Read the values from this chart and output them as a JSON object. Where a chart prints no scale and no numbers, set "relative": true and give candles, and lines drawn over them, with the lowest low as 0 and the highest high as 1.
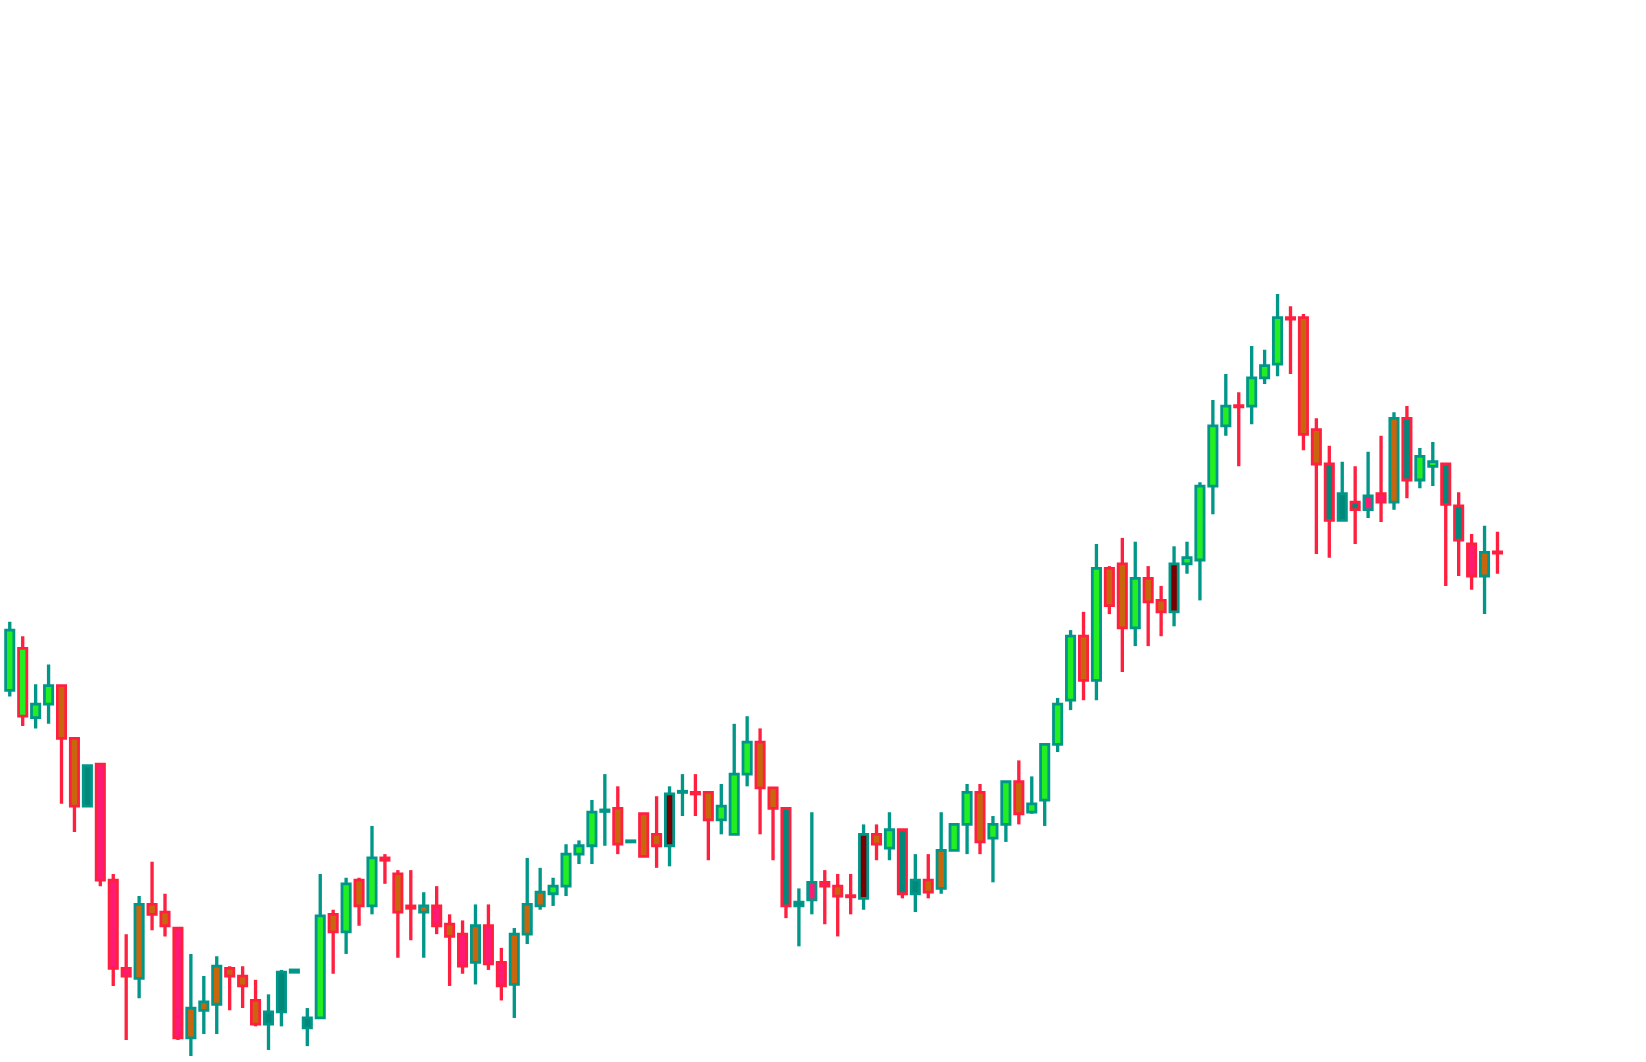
{
  "chart_data": {
    "type": "candlestick",
    "relative": true,
    "categories": [
      null,
      null,
      null,
      null,
      null,
      null,
      null,
      null,
      null,
      null,
      null,
      null,
      null,
      null,
      null,
      null,
      null,
      null,
      null,
      null,
      null,
      null,
      null,
      null,
      null,
      null,
      null,
      null,
      null,
      null,
      null,
      null,
      null,
      null,
      null,
      null,
      null,
      null,
      null,
      null,
      null,
      null,
      null,
      null,
      null,
      null,
      null,
      null,
      null,
      null,
      null,
      null,
      null,
      null,
      null,
      null,
      null,
      null,
      null,
      null,
      null,
      null,
      null,
      null,
      null,
      null,
      null,
      null,
      null,
      null,
      null,
      null,
      null,
      null,
      null,
      null,
      null,
      null,
      null,
      null,
      null,
      null,
      null,
      null,
      null,
      null,
      null,
      null,
      null,
      null,
      null,
      null,
      null,
      null,
      null,
      null,
      null,
      null,
      null,
      null,
      null,
      null,
      null,
      null,
      null,
      null,
      null,
      null,
      null,
      null,
      null,
      null,
      null,
      null,
      null,
      null
    ],
    "tick_labels": false,
    "ohlc": [
      [
        0.48,
        0.57,
        0.472,
        0.559
      ],
      [
        0.535,
        0.551,
        0.433,
        0.446
      ],
      [
        0.444,
        0.488,
        0.43,
        0.462
      ],
      [
        0.462,
        0.514,
        0.436,
        0.486
      ],
      [
        0.486,
        0.486,
        0.331,
        0.417
      ],
      [
        0.417,
        0.417,
        0.294,
        0.328
      ],
      [
        0.328,
        0.381,
        0.328,
        0.381
      ],
      [
        0.383,
        0.383,
        0.223,
        0.231
      ],
      [
        0.231,
        0.239,
        0.092,
        0.115
      ],
      [
        0.115,
        0.16,
        0.021,
        0.105
      ],
      [
        0.102,
        0.21,
        0.076,
        0.199
      ],
      [
        0.199,
        0.255,
        0.165,
        0.186
      ],
      [
        0.189,
        0.213,
        0.157,
        0.171
      ],
      [
        0.168,
        0.168,
        0.021,
        0.024
      ],
      [
        0.024,
        0.134,
        0.0,
        0.063
      ],
      [
        0.06,
        0.105,
        0.029,
        0.071
      ],
      [
        0.068,
        0.131,
        0.029,
        0.118
      ],
      [
        0.115,
        0.118,
        0.06,
        0.105
      ],
      [
        0.105,
        0.118,
        0.063,
        0.092
      ],
      [
        0.073,
        0.1,
        0.039,
        0.042
      ],
      [
        0.042,
        0.081,
        0.008,
        0.058
      ],
      [
        0.058,
        0.113,
        0.039,
        0.11
      ],
      [
        0.11,
        0.113,
        0.11,
        0.113
      ],
      [
        0.037,
        0.063,
        0.013,
        0.05
      ],
      [
        0.05,
        0.239,
        0.05,
        0.184
      ],
      [
        0.186,
        0.192,
        0.108,
        0.163
      ],
      [
        0.163,
        0.234,
        0.134,
        0.226
      ],
      [
        0.231,
        0.234,
        0.171,
        0.197
      ],
      [
        0.197,
        0.302,
        0.186,
        0.26
      ],
      [
        0.26,
        0.265,
        0.226,
        0.257
      ],
      [
        0.239,
        0.244,
        0.129,
        0.189
      ],
      [
        0.197,
        0.244,
        0.152,
        0.194
      ],
      [
        0.189,
        0.215,
        0.129,
        0.197
      ],
      [
        0.197,
        0.223,
        0.16,
        0.171
      ],
      [
        0.173,
        0.186,
        0.092,
        0.157
      ],
      [
        0.16,
        0.178,
        0.108,
        0.118
      ],
      [
        0.123,
        0.199,
        0.094,
        0.171
      ],
      [
        0.171,
        0.199,
        0.113,
        0.121
      ],
      [
        0.123,
        0.142,
        0.073,
        0.092
      ],
      [
        0.094,
        0.168,
        0.05,
        0.16
      ],
      [
        0.16,
        0.26,
        0.147,
        0.199
      ],
      [
        0.197,
        0.247,
        0.192,
        0.215
      ],
      [
        0.213,
        0.234,
        0.197,
        0.223
      ],
      [
        0.223,
        0.278,
        0.21,
        0.265
      ],
      [
        0.265,
        0.283,
        0.252,
        0.276
      ],
      [
        0.276,
        0.336,
        0.252,
        0.32
      ],
      [
        0.321,
        0.37,
        0.276,
        0.323
      ],
      [
        0.325,
        0.354,
        0.265,
        0.278
      ],
      [
        0.281,
        0.281,
        0.281,
        0.281
      ],
      [
        0.318,
        0.318,
        0.262,
        0.262
      ],
      [
        0.291,
        0.341,
        0.247,
        0.276
      ],
      [
        0.276,
        0.354,
        0.249,
        0.344
      ],
      [
        0.346,
        0.37,
        0.315,
        0.346
      ],
      [
        0.346,
        0.37,
        0.315,
        0.344
      ],
      [
        0.346,
        0.346,
        0.257,
        0.31
      ],
      [
        0.31,
        0.357,
        0.291,
        0.328
      ],
      [
        0.291,
        0.436,
        0.291,
        0.37
      ],
      [
        0.37,
        0.446,
        0.354,
        0.412
      ],
      [
        0.412,
        0.43,
        0.291,
        0.352
      ],
      [
        0.352,
        0.352,
        0.257,
        0.325
      ],
      [
        0.325,
        0.325,
        0.181,
        0.197
      ],
      [
        0.197,
        0.22,
        0.144,
        0.202
      ],
      [
        0.205,
        0.32,
        0.186,
        0.228
      ],
      [
        0.228,
        0.244,
        0.173,
        0.223
      ],
      [
        0.223,
        0.239,
        0.157,
        0.21
      ],
      [
        0.21,
        0.239,
        0.186,
        0.209
      ],
      [
        0.207,
        0.304,
        0.192,
        0.291
      ],
      [
        0.291,
        0.304,
        0.257,
        0.278
      ],
      [
        0.273,
        0.32,
        0.257,
        0.297
      ],
      [
        0.297,
        0.297,
        0.207,
        0.213
      ],
      [
        0.213,
        0.265,
        0.189,
        0.231
      ],
      [
        0.231,
        0.265,
        0.207,
        0.215
      ],
      [
        0.22,
        0.32,
        0.213,
        0.27
      ],
      [
        0.27,
        0.304,
        0.27,
        0.304
      ],
      [
        0.304,
        0.357,
        0.265,
        0.346
      ],
      [
        0.346,
        0.357,
        0.265,
        0.281
      ],
      [
        0.286,
        0.315,
        0.228,
        0.304
      ],
      [
        0.304,
        0.36,
        0.281,
        0.36
      ],
      [
        0.36,
        0.388,
        0.304,
        0.318
      ],
      [
        0.32,
        0.367,
        0.318,
        0.331
      ],
      [
        0.336,
        0.409,
        0.302,
        0.409
      ],
      [
        0.409,
        0.47,
        0.399,
        0.462
      ],
      [
        0.467,
        0.559,
        0.454,
        0.551
      ],
      [
        0.551,
        0.583,
        0.467,
        0.493
      ],
      [
        0.493,
        0.672,
        0.467,
        0.64
      ],
      [
        0.64,
        0.643,
        0.58,
        0.591
      ],
      [
        0.646,
        0.68,
        0.504,
        0.562
      ],
      [
        0.562,
        0.675,
        0.538,
        0.627
      ],
      [
        0.627,
        0.643,
        0.538,
        0.596
      ],
      [
        0.598,
        0.617,
        0.551,
        0.583
      ],
      [
        0.583,
        0.669,
        0.564,
        0.646
      ],
      [
        0.646,
        0.675,
        0.633,
        0.654
      ],
      [
        0.651,
        0.753,
        0.598,
        0.748
      ],
      [
        0.748,
        0.861,
        0.711,
        0.827
      ],
      [
        0.827,
        0.895,
        0.814,
        0.853
      ],
      [
        0.853,
        0.871,
        0.774,
        0.852
      ],
      [
        0.853,
        0.932,
        0.829,
        0.89
      ],
      [
        0.89,
        0.927,
        0.882,
        0.906
      ],
      [
        0.908,
        1.0,
        0.892,
        0.969
      ],
      [
        0.969,
        0.984,
        0.895,
        0.967
      ],
      [
        0.969,
        0.974,
        0.795,
        0.816
      ],
      [
        0.822,
        0.837,
        0.659,
        0.777
      ],
      [
        0.777,
        0.801,
        0.654,
        0.703
      ],
      [
        0.703,
        0.78,
        0.703,
        0.738
      ],
      [
        0.727,
        0.774,
        0.672,
        0.717
      ],
      [
        0.717,
        0.793,
        0.706,
        0.735
      ],
      [
        0.738,
        0.814,
        0.701,
        0.727
      ],
      [
        0.727,
        0.845,
        0.717,
        0.837
      ],
      [
        0.837,
        0.853,
        0.732,
        0.756
      ],
      [
        0.756,
        0.798,
        0.745,
        0.787
      ],
      [
        0.774,
        0.806,
        0.748,
        0.78
      ],
      [
        0.777,
        0.777,
        0.617,
        0.724
      ],
      [
        0.722,
        0.74,
        0.63,
        0.677
      ],
      [
        0.672,
        0.685,
        0.612,
        0.63
      ],
      [
        0.63,
        0.696,
        0.58,
        0.661
      ],
      [
        0.661,
        0.688,
        0.633,
        0.66
      ]
    ],
    "colors": [
      "#22ee22",
      "#22ee22",
      "#22ee22",
      "#22ee22",
      "#c8660e",
      "#c8660e",
      "#00897b",
      "#ff1a75",
      "#ff1a75",
      "#ff1a75",
      "#c8660e",
      "#c8660e",
      "#c8660e",
      "#ff1a75",
      "#c8660e",
      "#c8660e",
      "#c8660e",
      "#c8660e",
      "#c8660e",
      "#c8660e",
      "#00897b",
      "#00897b",
      "#00897b",
      "#00897b",
      "#22ee22",
      "#c8660e",
      "#22ee22",
      "#c8660e",
      "#22ee22",
      "#ff1a75",
      "#c8660e",
      "#ff1a75",
      "#c8660e",
      "#ff1a75",
      "#c8660e",
      "#ff1a75",
      "#c8660e",
      "#ff1a75",
      "#ff1a75",
      "#c8660e",
      "#c8660e",
      "#c8660e",
      "#22ee22",
      "#22ee22",
      "#22ee22",
      "#22ee22",
      "#22ee22",
      "#c8660e",
      "#00897b",
      "#c8660e",
      "#c8660e",
      "#7a0000",
      "#00897b",
      "#ff1a75",
      "#c8660e",
      "#22ee22",
      "#22ee22",
      "#22ee22",
      "#c8660e",
      "#c8660e",
      "#00897b",
      "#00897b",
      "#ff1a75",
      "#ff1a75",
      "#c8660e",
      "#ff1a75",
      "#7a0000",
      "#c8660e",
      "#22ee22",
      "#00897b",
      "#00897b",
      "#c8660e",
      "#c8660e",
      "#22ee22",
      "#22ee22",
      "#c8660e",
      "#22ee22",
      "#22ee22",
      "#c8660e",
      "#22ee22",
      "#22ee22",
      "#22ee22",
      "#22ee22",
      "#c8660e",
      "#22ee22",
      "#c8660e",
      "#c8660e",
      "#22ee22",
      "#c8660e",
      "#c8660e",
      "#7a0000",
      "#22ee22",
      "#22ee22",
      "#22ee22",
      "#22ee22",
      "#ff1a75",
      "#22ee22",
      "#22ee22",
      "#22ee22",
      "#ff1a75",
      "#c8660e",
      "#c8660e",
      "#00897b",
      "#00897b",
      "#00897b",
      "#ff1a75",
      "#ff1a75",
      "#c8660e",
      "#00897b",
      "#22ee22",
      "#22ee22",
      "#00897b",
      "#00897b",
      "#ff1a75",
      "#c8660e",
      "#ff1a75"
    ]
  }
}
